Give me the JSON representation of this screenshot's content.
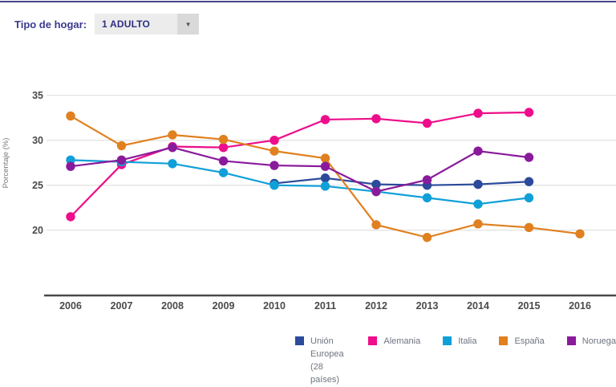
{
  "header": {
    "filter_label": "Tipo de hogar:",
    "selected_option": "1 ADULTO",
    "dropdown_arrow": "▼"
  },
  "colors": {
    "top_rule": "#45458c",
    "axis_text": "#4b4b4b",
    "grid_line": "#e4e4e4",
    "axis_line": "#4a4a4a",
    "legend_text": "#6d7580"
  },
  "chart_data": {
    "type": "line",
    "title": "",
    "xlabel": "",
    "ylabel": "Porcentaje (%)",
    "x": [
      "2006",
      "2007",
      "2008",
      "2009",
      "2010",
      "2011",
      "2012",
      "2013",
      "2014",
      "2015",
      "2016"
    ],
    "y_ticks": [
      35,
      30,
      25,
      20
    ],
    "ylim": [
      17.5,
      36.5
    ],
    "grid": "horizontal",
    "legend_position": "bottom",
    "marker": "circle",
    "series": [
      {
        "name": "Unión Europea (28 países)",
        "color": "#2b4a9b",
        "values": [
          null,
          null,
          null,
          null,
          25.2,
          25.8,
          25.1,
          25.0,
          25.1,
          25.4,
          null
        ]
      },
      {
        "name": "Alemania",
        "color": "#ee0d8a",
        "values": [
          21.5,
          27.3,
          29.3,
          29.2,
          30.0,
          32.3,
          32.4,
          31.9,
          33.0,
          33.1,
          null
        ]
      },
      {
        "name": "Italia",
        "color": "#0fa0d8",
        "values": [
          27.8,
          27.6,
          27.4,
          26.4,
          25.0,
          24.9,
          24.3,
          23.6,
          22.9,
          23.6,
          null
        ]
      },
      {
        "name": "España",
        "color": "#e0801f",
        "values": [
          32.7,
          29.4,
          30.6,
          30.1,
          28.8,
          28.0,
          20.6,
          19.2,
          20.7,
          20.3,
          19.6
        ]
      },
      {
        "name": "Noruega",
        "color": "#8a1a9c",
        "values": [
          27.1,
          27.8,
          29.2,
          27.7,
          27.2,
          27.1,
          24.3,
          25.6,
          28.8,
          28.1,
          null
        ]
      }
    ]
  }
}
